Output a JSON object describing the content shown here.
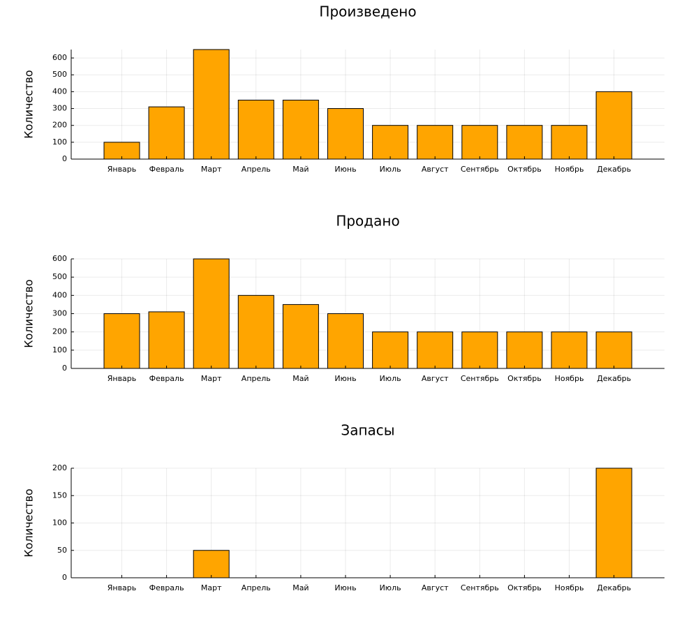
{
  "chart_data": [
    {
      "type": "bar",
      "title": "Произведено",
      "ylabel": "Количество",
      "categories": [
        "Январь",
        "Февраль",
        "Март",
        "Апрель",
        "Май",
        "Июнь",
        "Июль",
        "Август",
        "Сентябрь",
        "Октябрь",
        "Ноябрь",
        "Декабрь"
      ],
      "values": [
        100,
        310,
        650,
        350,
        350,
        300,
        200,
        200,
        200,
        200,
        200,
        400
      ],
      "ylim": [
        0,
        650
      ],
      "yticks": [
        0,
        100,
        200,
        300,
        400,
        500,
        600
      ],
      "grid": true,
      "legend": "none",
      "color": "#FFA500"
    },
    {
      "type": "bar",
      "title": "Продано",
      "ylabel": "Количество",
      "categories": [
        "Январь",
        "Февраль",
        "Март",
        "Апрель",
        "Май",
        "Июнь",
        "Июль",
        "Август",
        "Сентябрь",
        "Октябрь",
        "Ноябрь",
        "Декабрь"
      ],
      "values": [
        300,
        310,
        600,
        400,
        350,
        300,
        200,
        200,
        200,
        200,
        200,
        200
      ],
      "ylim": [
        0,
        600
      ],
      "yticks": [
        0,
        100,
        200,
        300,
        400,
        500,
        600
      ],
      "grid": true,
      "legend": "none",
      "color": "#FFA500"
    },
    {
      "type": "bar",
      "title": "Запасы",
      "ylabel": "Количество",
      "categories": [
        "Январь",
        "Февраль",
        "Март",
        "Апрель",
        "Май",
        "Июнь",
        "Июль",
        "Август",
        "Сентябрь",
        "Октябрь",
        "Ноябрь",
        "Декабрь"
      ],
      "values": [
        0,
        0,
        50,
        0,
        0,
        0,
        0,
        0,
        0,
        0,
        0,
        200
      ],
      "ylim": [
        0,
        200
      ],
      "yticks": [
        0,
        50,
        100,
        150,
        200
      ],
      "grid": true,
      "legend": "none",
      "color": "#FFA500"
    }
  ]
}
